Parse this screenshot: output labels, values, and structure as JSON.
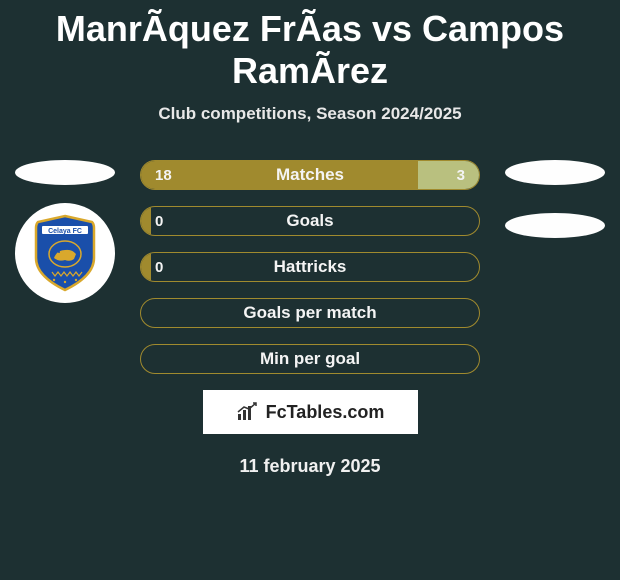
{
  "title": "ManrÃ­quez FrÃ­as vs Campos RamÃ­rez",
  "subtitle": "Club competitions, Season 2024/2025",
  "brand": "FcTables.com",
  "date": "11 february 2025",
  "colors": {
    "background": "#1d3032",
    "bar_border": "#a08a2e",
    "left_fill": "#a08a2e",
    "right_fill": "#b9c07f",
    "text": "#f4f4f4"
  },
  "stats": [
    {
      "label": "Matches",
      "left_val": "18",
      "right_val": "3",
      "left_pct": 82,
      "right_pct": 18,
      "show_left": true,
      "show_right": true
    },
    {
      "label": "Goals",
      "left_val": "0",
      "right_val": "",
      "left_pct": 3,
      "right_pct": 0,
      "show_left": true,
      "show_right": false
    },
    {
      "label": "Hattricks",
      "left_val": "0",
      "right_val": "0",
      "left_pct": 3,
      "right_pct": 0,
      "show_left": true,
      "show_right": false
    },
    {
      "label": "Goals per match",
      "left_val": "",
      "right_val": "",
      "left_pct": 0,
      "right_pct": 0,
      "show_left": false,
      "show_right": false
    },
    {
      "label": "Min per goal",
      "left_val": "",
      "right_val": "",
      "left_pct": 0,
      "right_pct": 0,
      "show_left": false,
      "show_right": false
    }
  ],
  "badge": {
    "main_color": "#1a4faa",
    "border_color": "#d9a82c",
    "label": "Celaya FC"
  }
}
